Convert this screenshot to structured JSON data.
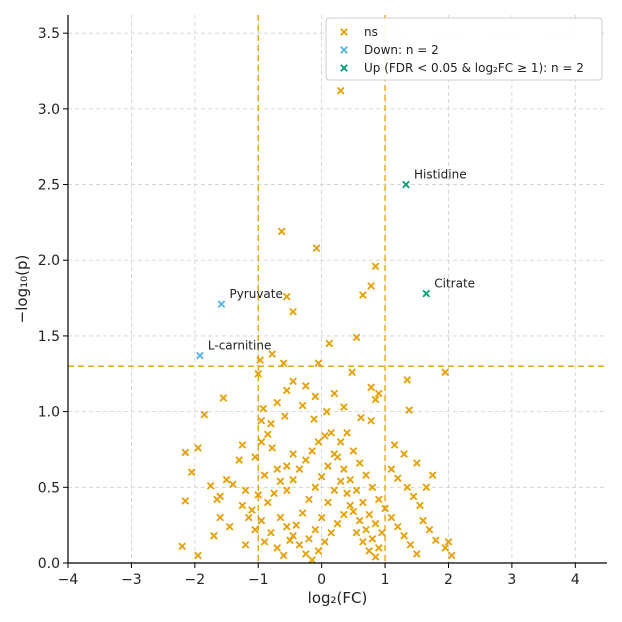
{
  "chart_data": {
    "type": "scatter",
    "xlabel": "log₂(FC)",
    "ylabel": "−log₁₀(p)",
    "xlim": [
      -4,
      4.5
    ],
    "ylim": [
      0,
      3.62
    ],
    "xticks": [
      -4,
      -3,
      -2,
      -1,
      0,
      1,
      2,
      3,
      4
    ],
    "xtick_labels": [
      "−4",
      "−3",
      "−2",
      "−1",
      "0",
      "1",
      "2",
      "3",
      "4"
    ],
    "yticks": [
      0.0,
      0.5,
      1.0,
      1.5,
      2.0,
      2.5,
      3.0,
      3.5
    ],
    "ytick_labels": [
      "0.0",
      "0.5",
      "1.0",
      "1.5",
      "2.0",
      "2.5",
      "3.0",
      "3.5"
    ],
    "grid": true,
    "marker": "x",
    "thresholds": {
      "x": [
        -1,
        1
      ],
      "y": 1.3,
      "color": "#E69F00"
    },
    "legend": {
      "placement": "top-right",
      "entries": [
        {
          "label": "ns",
          "color": "#E69F00"
        },
        {
          "label": "Down: n = 2",
          "color": "#56B4E9"
        },
        {
          "label": "Up (FDR < 0.05 & log₂FC ≥ 1): n = 2",
          "color": "#009E73"
        }
      ]
    },
    "series": [
      {
        "name": "Up (FDR < 0.05 & log₂FC ≥ 1): n = 2",
        "color": "#009E73",
        "points": [
          {
            "x": 1.33,
            "y": 2.5,
            "label": "Histidine"
          },
          {
            "x": 1.65,
            "y": 1.78,
            "label": "Citrate"
          }
        ]
      },
      {
        "name": "Down: n = 2",
        "color": "#56B4E9",
        "points": [
          {
            "x": -1.58,
            "y": 1.71,
            "label": "Pyruvate"
          },
          {
            "x": -1.92,
            "y": 1.37,
            "label": "L-carnitine"
          }
        ]
      },
      {
        "name": "ns",
        "color": "#E69F00",
        "points": [
          {
            "x": 0.3,
            "y": 3.12
          },
          {
            "x": -0.63,
            "y": 2.19
          },
          {
            "x": -0.08,
            "y": 2.08
          },
          {
            "x": 0.85,
            "y": 1.96
          },
          {
            "x": 0.78,
            "y": 1.83
          },
          {
            "x": 0.65,
            "y": 1.77
          },
          {
            "x": -0.55,
            "y": 1.76
          },
          {
            "x": -0.45,
            "y": 1.66
          },
          {
            "x": 0.55,
            "y": 1.49
          },
          {
            "x": 0.12,
            "y": 1.45
          },
          {
            "x": -0.97,
            "y": 1.34
          },
          {
            "x": -0.6,
            "y": 1.32
          },
          {
            "x": -0.05,
            "y": 1.32
          },
          {
            "x": -0.78,
            "y": 1.38
          },
          {
            "x": 1.95,
            "y": 1.26
          },
          {
            "x": 0.48,
            "y": 1.26
          },
          {
            "x": -1.0,
            "y": 1.25
          },
          {
            "x": 1.35,
            "y": 1.21
          },
          {
            "x": -0.45,
            "y": 1.2
          },
          {
            "x": -0.25,
            "y": 1.17
          },
          {
            "x": 0.78,
            "y": 1.16
          },
          {
            "x": -0.55,
            "y": 1.14
          },
          {
            "x": 0.9,
            "y": 1.12
          },
          {
            "x": 0.2,
            "y": 1.12
          },
          {
            "x": -0.1,
            "y": 1.1
          },
          {
            "x": -1.55,
            "y": 1.09
          },
          {
            "x": 0.85,
            "y": 1.08
          },
          {
            "x": -0.7,
            "y": 1.06
          },
          {
            "x": -0.3,
            "y": 1.04
          },
          {
            "x": 0.35,
            "y": 1.03
          },
          {
            "x": -0.92,
            "y": 1.02
          },
          {
            "x": 1.38,
            "y": 1.01
          },
          {
            "x": 0.08,
            "y": 1.0
          },
          {
            "x": -1.85,
            "y": 0.98
          },
          {
            "x": -0.58,
            "y": 0.97
          },
          {
            "x": 0.62,
            "y": 0.96
          },
          {
            "x": -0.12,
            "y": 0.95
          },
          {
            "x": -0.95,
            "y": 0.94
          },
          {
            "x": -0.8,
            "y": 0.92
          },
          {
            "x": 0.78,
            "y": 0.94
          },
          {
            "x": -2.15,
            "y": 0.73
          },
          {
            "x": -1.95,
            "y": 0.76
          },
          {
            "x": -2.05,
            "y": 0.6
          },
          {
            "x": -2.15,
            "y": 0.41
          },
          {
            "x": -1.65,
            "y": 0.42
          },
          {
            "x": -1.75,
            "y": 0.51
          },
          {
            "x": -1.4,
            "y": 0.52
          },
          {
            "x": -1.2,
            "y": 0.48
          },
          {
            "x": -1.3,
            "y": 0.68
          },
          {
            "x": -1.25,
            "y": 0.78
          },
          {
            "x": -1.5,
            "y": 0.55
          },
          {
            "x": -1.6,
            "y": 0.44
          },
          {
            "x": -1.6,
            "y": 0.3
          },
          {
            "x": -1.45,
            "y": 0.24
          },
          {
            "x": -1.7,
            "y": 0.18
          },
          {
            "x": -2.2,
            "y": 0.11
          },
          {
            "x": -1.95,
            "y": 0.05
          },
          {
            "x": -1.2,
            "y": 0.12
          },
          {
            "x": -1.1,
            "y": 0.35
          },
          {
            "x": -1.05,
            "y": 0.7
          },
          {
            "x": -0.95,
            "y": 0.8
          },
          {
            "x": -0.85,
            "y": 0.85
          },
          {
            "x": -0.78,
            "y": 0.76
          },
          {
            "x": -0.7,
            "y": 0.62
          },
          {
            "x": -0.9,
            "y": 0.58
          },
          {
            "x": -1.0,
            "y": 0.45
          },
          {
            "x": -0.85,
            "y": 0.4
          },
          {
            "x": -0.95,
            "y": 0.28
          },
          {
            "x": -0.8,
            "y": 0.2
          },
          {
            "x": -0.7,
            "y": 0.1
          },
          {
            "x": -0.6,
            "y": 0.05
          },
          {
            "x": -0.5,
            "y": 0.15
          },
          {
            "x": -0.4,
            "y": 0.25
          },
          {
            "x": -0.3,
            "y": 0.33
          },
          {
            "x": -0.2,
            "y": 0.42
          },
          {
            "x": -0.1,
            "y": 0.5
          },
          {
            "x": 0.0,
            "y": 0.57
          },
          {
            "x": 0.1,
            "y": 0.64
          },
          {
            "x": 0.2,
            "y": 0.72
          },
          {
            "x": 0.3,
            "y": 0.8
          },
          {
            "x": 0.4,
            "y": 0.86
          },
          {
            "x": 0.5,
            "y": 0.74
          },
          {
            "x": 0.6,
            "y": 0.66
          },
          {
            "x": 0.7,
            "y": 0.58
          },
          {
            "x": 0.8,
            "y": 0.5
          },
          {
            "x": 0.9,
            "y": 0.42
          },
          {
            "x": 1.0,
            "y": 0.36
          },
          {
            "x": 1.1,
            "y": 0.3
          },
          {
            "x": 1.2,
            "y": 0.24
          },
          {
            "x": 1.3,
            "y": 0.18
          },
          {
            "x": 1.4,
            "y": 0.12
          },
          {
            "x": 1.5,
            "y": 0.06
          },
          {
            "x": 1.1,
            "y": 0.62
          },
          {
            "x": 1.2,
            "y": 0.56
          },
          {
            "x": 1.35,
            "y": 0.5
          },
          {
            "x": 1.45,
            "y": 0.44
          },
          {
            "x": 1.55,
            "y": 0.38
          },
          {
            "x": 1.6,
            "y": 0.28
          },
          {
            "x": 1.7,
            "y": 0.22
          },
          {
            "x": 1.8,
            "y": 0.15
          },
          {
            "x": 1.95,
            "y": 0.1
          },
          {
            "x": 2.0,
            "y": 0.14
          },
          {
            "x": 2.05,
            "y": 0.05
          },
          {
            "x": 1.75,
            "y": 0.58
          },
          {
            "x": 1.65,
            "y": 0.5
          },
          {
            "x": 1.5,
            "y": 0.66
          },
          {
            "x": 1.3,
            "y": 0.72
          },
          {
            "x": 1.15,
            "y": 0.78
          },
          {
            "x": -0.55,
            "y": 0.48
          },
          {
            "x": -0.45,
            "y": 0.55
          },
          {
            "x": -0.35,
            "y": 0.62
          },
          {
            "x": -0.25,
            "y": 0.68
          },
          {
            "x": -0.15,
            "y": 0.74
          },
          {
            "x": -0.05,
            "y": 0.8
          },
          {
            "x": 0.05,
            "y": 0.84
          },
          {
            "x": 0.15,
            "y": 0.86
          },
          {
            "x": 0.25,
            "y": 0.7
          },
          {
            "x": 0.35,
            "y": 0.62
          },
          {
            "x": 0.45,
            "y": 0.55
          },
          {
            "x": 0.55,
            "y": 0.48
          },
          {
            "x": 0.65,
            "y": 0.4
          },
          {
            "x": 0.75,
            "y": 0.32
          },
          {
            "x": 0.85,
            "y": 0.26
          },
          {
            "x": 0.95,
            "y": 0.2
          },
          {
            "x": -0.65,
            "y": 0.3
          },
          {
            "x": -0.55,
            "y": 0.24
          },
          {
            "x": -0.45,
            "y": 0.18
          },
          {
            "x": -0.35,
            "y": 0.12
          },
          {
            "x": -0.25,
            "y": 0.06
          },
          {
            "x": -0.15,
            "y": 0.02
          },
          {
            "x": -0.05,
            "y": 0.08
          },
          {
            "x": 0.05,
            "y": 0.14
          },
          {
            "x": 0.15,
            "y": 0.2
          },
          {
            "x": 0.25,
            "y": 0.26
          },
          {
            "x": 0.35,
            "y": 0.32
          },
          {
            "x": 0.45,
            "y": 0.38
          },
          {
            "x": 0.55,
            "y": 0.2
          },
          {
            "x": 0.65,
            "y": 0.14
          },
          {
            "x": 0.75,
            "y": 0.08
          },
          {
            "x": 0.85,
            "y": 0.04
          },
          {
            "x": -0.9,
            "y": 0.14
          },
          {
            "x": -1.05,
            "y": 0.22
          },
          {
            "x": -1.15,
            "y": 0.3
          },
          {
            "x": -1.25,
            "y": 0.38
          },
          {
            "x": -0.75,
            "y": 0.46
          },
          {
            "x": -0.65,
            "y": 0.54
          },
          {
            "x": -0.55,
            "y": 0.64
          },
          {
            "x": -0.45,
            "y": 0.72
          },
          {
            "x": 0.0,
            "y": 0.3
          },
          {
            "x": -0.1,
            "y": 0.22
          },
          {
            "x": -0.2,
            "y": 0.16
          },
          {
            "x": 0.1,
            "y": 0.4
          },
          {
            "x": 0.2,
            "y": 0.48
          },
          {
            "x": 0.3,
            "y": 0.54
          },
          {
            "x": 0.4,
            "y": 0.46
          },
          {
            "x": 0.5,
            "y": 0.34
          },
          {
            "x": 0.6,
            "y": 0.28
          },
          {
            "x": 0.7,
            "y": 0.22
          },
          {
            "x": 0.8,
            "y": 0.16
          },
          {
            "x": 0.9,
            "y": 0.1
          }
        ]
      }
    ],
    "annotations": [
      {
        "text": "Histidine",
        "x": 1.33,
        "y": 2.5
      },
      {
        "text": "Citrate",
        "x": 1.65,
        "y": 1.78
      },
      {
        "text": "Pyruvate",
        "x": -1.58,
        "y": 1.71
      },
      {
        "text": "L-carnitine",
        "x": -1.92,
        "y": 1.37
      }
    ]
  }
}
